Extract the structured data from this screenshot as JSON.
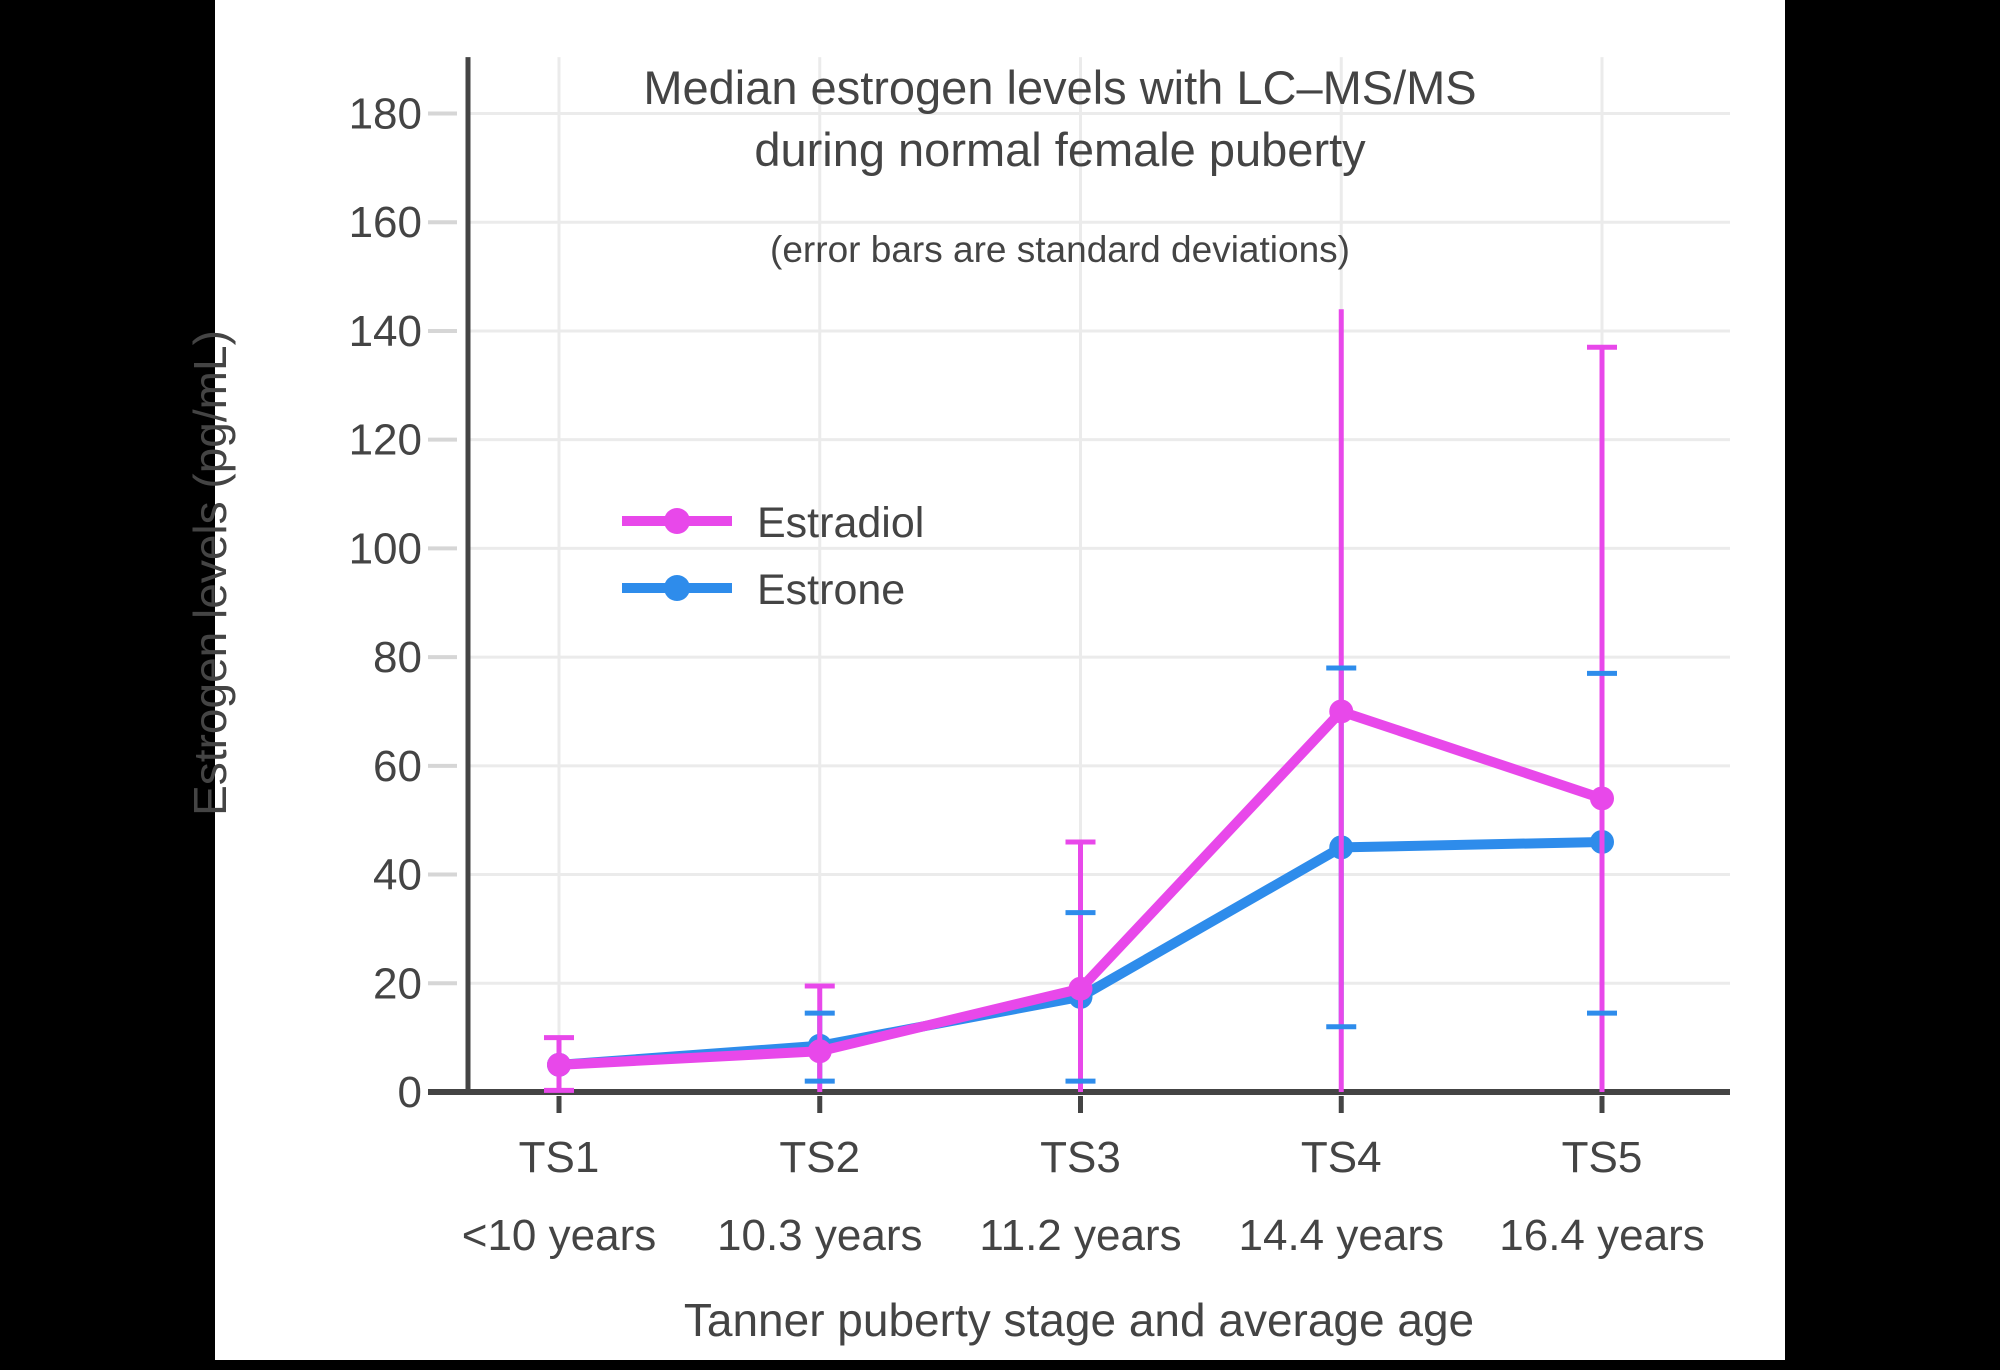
{
  "page": {
    "background_color": "#000000",
    "canvas_color": "#ffffff"
  },
  "chart_data": {
    "type": "line",
    "title": "Median estrogen levels with LC–MS/MS",
    "title_line2": "during normal female puberty",
    "subtitle": "(error bars are standard deviations)",
    "xlabel": "Tanner puberty stage and average age",
    "ylabel": "Estrogen levels (pg/mL)",
    "categories": [
      "TS1",
      "TS2",
      "TS3",
      "TS4",
      "TS5"
    ],
    "category_sublabels": [
      "<10 years",
      "10.3 years",
      "11.2 years",
      "14.4 years",
      "16.4 years"
    ],
    "yticks": [
      0,
      20,
      40,
      60,
      80,
      100,
      120,
      140,
      160,
      180
    ],
    "ylim": [
      0,
      190
    ],
    "grid": true,
    "legend_position": "inside-upper-left",
    "colors": {
      "estradiol": "#E848EA",
      "estrone": "#2E8CEB",
      "gridline": "#EBEBEB",
      "axis": "#444444",
      "y_tick": "#D6D6D6",
      "text": "#444444"
    },
    "series": [
      {
        "name": "Estradiol",
        "color": "#E848EA",
        "values": [
          5,
          7.5,
          19,
          70,
          54
        ],
        "error_top": [
          10,
          19.5,
          46,
          144,
          137
        ],
        "error_bottom": [
          0.3,
          0,
          0,
          0,
          0
        ],
        "error_top_cap": [
          true,
          true,
          true,
          false,
          true
        ],
        "error_bottom_cap": [
          true,
          false,
          false,
          false,
          false
        ]
      },
      {
        "name": "Estrone",
        "color": "#2E8CEB",
        "values": [
          5,
          8.5,
          17.5,
          45,
          46
        ],
        "error_top": [
          null,
          14.5,
          33,
          78,
          77
        ],
        "error_bottom": [
          null,
          2,
          2,
          12,
          14.5
        ],
        "error_top_cap": [
          false,
          true,
          true,
          true,
          true
        ],
        "error_bottom_cap": [
          false,
          true,
          true,
          true,
          true
        ]
      }
    ]
  }
}
